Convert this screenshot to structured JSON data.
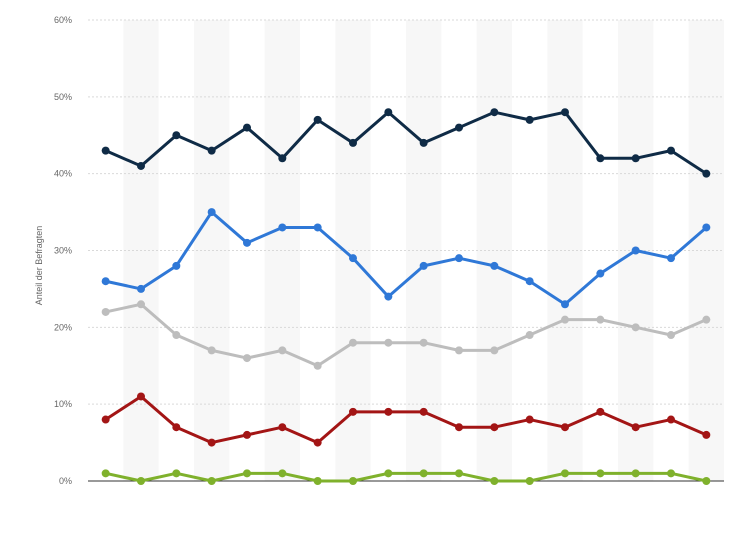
{
  "chart_data": {
    "type": "line",
    "ylabel": "Anteil der Befragten",
    "ylim": [
      0,
      60
    ],
    "y_ticks": [
      0,
      10,
      20,
      30,
      40,
      50,
      60
    ],
    "y_tick_labels": [
      "0%",
      "10%",
      "20%",
      "30%",
      "40%",
      "50%",
      "60%"
    ],
    "x_count": 18,
    "grid": true,
    "legend": "none",
    "series": [
      {
        "color": "#0f2b46",
        "values": [
          43,
          41,
          45,
          43,
          46,
          42,
          47,
          44,
          48,
          44,
          46,
          48,
          47,
          48,
          42,
          42,
          43,
          40
        ]
      },
      {
        "color": "#2f78d7",
        "values": [
          26,
          25,
          28,
          35,
          31,
          33,
          33,
          29,
          24,
          28,
          29,
          28,
          26,
          23,
          27,
          30,
          29,
          33
        ]
      },
      {
        "color": "#bdbdbd",
        "values": [
          22,
          23,
          19,
          17,
          16,
          17,
          15,
          18,
          18,
          18,
          17,
          17,
          19,
          21,
          21,
          20,
          19,
          21
        ]
      },
      {
        "color": "#a31515",
        "values": [
          8,
          11,
          7,
          5,
          6,
          7,
          5,
          9,
          9,
          9,
          7,
          7,
          8,
          7,
          9,
          7,
          8,
          6
        ]
      },
      {
        "color": "#7fb12c",
        "values": [
          1,
          0,
          1,
          0,
          1,
          1,
          0,
          0,
          1,
          1,
          1,
          0,
          0,
          1,
          1,
          1,
          1,
          0
        ]
      }
    ]
  }
}
